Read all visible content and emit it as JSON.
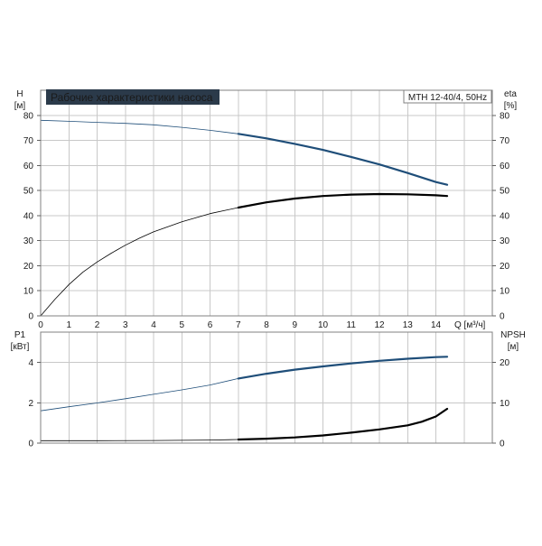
{
  "title": "Рабочие характеристики насоса",
  "model_label": "MTH 12-40/4, 50Hz",
  "colors": {
    "blue_curve": "#1f4e79",
    "black_curve": "#000000",
    "title_bg": "#2b3a4a",
    "title_fg": "#ffffff"
  },
  "chart_data": [
    {
      "type": "line",
      "panel": "upper",
      "x_label": "Q [м³/ч]",
      "x_ticks": [
        0,
        1,
        2,
        3,
        4,
        5,
        6,
        7,
        8,
        9,
        10,
        11,
        12,
        13,
        14
      ],
      "xlim": [
        0,
        16
      ],
      "left_axis": {
        "name": "H",
        "unit": "[м]",
        "ticks": [
          0,
          10,
          20,
          30,
          40,
          50,
          60,
          70,
          80
        ],
        "ylim": [
          0,
          90
        ]
      },
      "right_axis": {
        "name": "eta",
        "unit": "[%]",
        "ticks": [
          0,
          10,
          20,
          30,
          40,
          50,
          60,
          70,
          80
        ],
        "ylim": [
          0,
          90
        ]
      },
      "grid": true,
      "series": [
        {
          "axis": "left",
          "color": "blue_curve",
          "thick_from": 7,
          "x": [
            0,
            1,
            2,
            3,
            4,
            5,
            6,
            7,
            8,
            9,
            10,
            11,
            12,
            13,
            14,
            14.4
          ],
          "y": [
            78,
            77.6,
            77.2,
            76.8,
            76.2,
            75.2,
            74,
            72.6,
            70.8,
            68.6,
            66.2,
            63.4,
            60.4,
            57,
            53.4,
            52.3
          ]
        },
        {
          "axis": "right",
          "color": "black_curve",
          "thick_from": 7,
          "x": [
            0,
            0.5,
            1,
            1.5,
            2,
            2.5,
            3,
            3.5,
            4,
            5,
            6,
            7,
            8,
            9,
            10,
            11,
            12,
            13,
            14,
            14.4
          ],
          "y": [
            0,
            6.5,
            12.5,
            17.5,
            21.5,
            25,
            28.2,
            31,
            33.5,
            37.5,
            40.8,
            43.2,
            45.3,
            46.8,
            47.8,
            48.4,
            48.6,
            48.5,
            48.1,
            47.8
          ]
        }
      ]
    },
    {
      "type": "line",
      "panel": "lower",
      "x_ticks": [],
      "xlim": [
        0,
        16
      ],
      "left_axis": {
        "name": "P1",
        "unit": "[кВт]",
        "ticks": [
          0,
          2,
          4
        ],
        "ylim": [
          0,
          5.5
        ]
      },
      "right_axis": {
        "name": "NPSH",
        "unit": "[м]",
        "ticks": [
          0,
          10,
          20
        ],
        "ylim": [
          0,
          27.5
        ]
      },
      "grid": true,
      "series": [
        {
          "axis": "left",
          "color": "blue_curve",
          "thick_from": 7,
          "x": [
            0,
            1,
            2,
            3,
            4,
            5,
            6,
            7,
            8,
            9,
            10,
            11,
            12,
            13,
            14,
            14.4
          ],
          "y": [
            1.6,
            1.8,
            1.99,
            2.2,
            2.42,
            2.64,
            2.88,
            3.2,
            3.44,
            3.64,
            3.8,
            3.95,
            4.08,
            4.18,
            4.26,
            4.28
          ]
        },
        {
          "axis": "right",
          "color": "black_curve",
          "thick_from": 7,
          "x": [
            0,
            2,
            4,
            6,
            7,
            8,
            9,
            10,
            11,
            12,
            13,
            13.5,
            14,
            14.4
          ],
          "y": [
            0.6,
            0.6,
            0.65,
            0.75,
            0.9,
            1.1,
            1.4,
            1.9,
            2.6,
            3.4,
            4.4,
            5.3,
            6.6,
            8.5
          ]
        }
      ]
    }
  ]
}
